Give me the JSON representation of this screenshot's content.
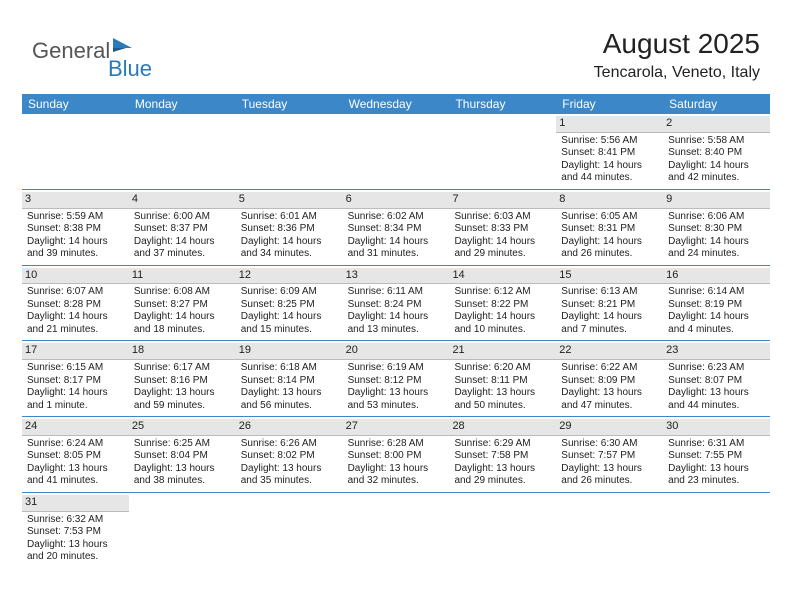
{
  "logo": {
    "text1": "General",
    "text2": "Blue"
  },
  "title": "August 2025",
  "subtitle": "Tencarola, Veneto, Italy",
  "colors": {
    "header_bg": "#3b87c8",
    "header_fg": "#ffffff",
    "daynum_bg": "#e6e6e6",
    "row_border": "#3b87c8",
    "logo_blue": "#2a7ab9"
  },
  "day_names": [
    "Sunday",
    "Monday",
    "Tuesday",
    "Wednesday",
    "Thursday",
    "Friday",
    "Saturday"
  ],
  "weeks": [
    [
      null,
      null,
      null,
      null,
      null,
      {
        "n": "1",
        "sr": "Sunrise: 5:56 AM",
        "ss": "Sunset: 8:41 PM",
        "dl": "Daylight: 14 hours and 44 minutes."
      },
      {
        "n": "2",
        "sr": "Sunrise: 5:58 AM",
        "ss": "Sunset: 8:40 PM",
        "dl": "Daylight: 14 hours and 42 minutes."
      }
    ],
    [
      {
        "n": "3",
        "sr": "Sunrise: 5:59 AM",
        "ss": "Sunset: 8:38 PM",
        "dl": "Daylight: 14 hours and 39 minutes."
      },
      {
        "n": "4",
        "sr": "Sunrise: 6:00 AM",
        "ss": "Sunset: 8:37 PM",
        "dl": "Daylight: 14 hours and 37 minutes."
      },
      {
        "n": "5",
        "sr": "Sunrise: 6:01 AM",
        "ss": "Sunset: 8:36 PM",
        "dl": "Daylight: 14 hours and 34 minutes."
      },
      {
        "n": "6",
        "sr": "Sunrise: 6:02 AM",
        "ss": "Sunset: 8:34 PM",
        "dl": "Daylight: 14 hours and 31 minutes."
      },
      {
        "n": "7",
        "sr": "Sunrise: 6:03 AM",
        "ss": "Sunset: 8:33 PM",
        "dl": "Daylight: 14 hours and 29 minutes."
      },
      {
        "n": "8",
        "sr": "Sunrise: 6:05 AM",
        "ss": "Sunset: 8:31 PM",
        "dl": "Daylight: 14 hours and 26 minutes."
      },
      {
        "n": "9",
        "sr": "Sunrise: 6:06 AM",
        "ss": "Sunset: 8:30 PM",
        "dl": "Daylight: 14 hours and 24 minutes."
      }
    ],
    [
      {
        "n": "10",
        "sr": "Sunrise: 6:07 AM",
        "ss": "Sunset: 8:28 PM",
        "dl": "Daylight: 14 hours and 21 minutes."
      },
      {
        "n": "11",
        "sr": "Sunrise: 6:08 AM",
        "ss": "Sunset: 8:27 PM",
        "dl": "Daylight: 14 hours and 18 minutes."
      },
      {
        "n": "12",
        "sr": "Sunrise: 6:09 AM",
        "ss": "Sunset: 8:25 PM",
        "dl": "Daylight: 14 hours and 15 minutes."
      },
      {
        "n": "13",
        "sr": "Sunrise: 6:11 AM",
        "ss": "Sunset: 8:24 PM",
        "dl": "Daylight: 14 hours and 13 minutes."
      },
      {
        "n": "14",
        "sr": "Sunrise: 6:12 AM",
        "ss": "Sunset: 8:22 PM",
        "dl": "Daylight: 14 hours and 10 minutes."
      },
      {
        "n": "15",
        "sr": "Sunrise: 6:13 AM",
        "ss": "Sunset: 8:21 PM",
        "dl": "Daylight: 14 hours and 7 minutes."
      },
      {
        "n": "16",
        "sr": "Sunrise: 6:14 AM",
        "ss": "Sunset: 8:19 PM",
        "dl": "Daylight: 14 hours and 4 minutes."
      }
    ],
    [
      {
        "n": "17",
        "sr": "Sunrise: 6:15 AM",
        "ss": "Sunset: 8:17 PM",
        "dl": "Daylight: 14 hours and 1 minute."
      },
      {
        "n": "18",
        "sr": "Sunrise: 6:17 AM",
        "ss": "Sunset: 8:16 PM",
        "dl": "Daylight: 13 hours and 59 minutes."
      },
      {
        "n": "19",
        "sr": "Sunrise: 6:18 AM",
        "ss": "Sunset: 8:14 PM",
        "dl": "Daylight: 13 hours and 56 minutes."
      },
      {
        "n": "20",
        "sr": "Sunrise: 6:19 AM",
        "ss": "Sunset: 8:12 PM",
        "dl": "Daylight: 13 hours and 53 minutes."
      },
      {
        "n": "21",
        "sr": "Sunrise: 6:20 AM",
        "ss": "Sunset: 8:11 PM",
        "dl": "Daylight: 13 hours and 50 minutes."
      },
      {
        "n": "22",
        "sr": "Sunrise: 6:22 AM",
        "ss": "Sunset: 8:09 PM",
        "dl": "Daylight: 13 hours and 47 minutes."
      },
      {
        "n": "23",
        "sr": "Sunrise: 6:23 AM",
        "ss": "Sunset: 8:07 PM",
        "dl": "Daylight: 13 hours and 44 minutes."
      }
    ],
    [
      {
        "n": "24",
        "sr": "Sunrise: 6:24 AM",
        "ss": "Sunset: 8:05 PM",
        "dl": "Daylight: 13 hours and 41 minutes."
      },
      {
        "n": "25",
        "sr": "Sunrise: 6:25 AM",
        "ss": "Sunset: 8:04 PM",
        "dl": "Daylight: 13 hours and 38 minutes."
      },
      {
        "n": "26",
        "sr": "Sunrise: 6:26 AM",
        "ss": "Sunset: 8:02 PM",
        "dl": "Daylight: 13 hours and 35 minutes."
      },
      {
        "n": "27",
        "sr": "Sunrise: 6:28 AM",
        "ss": "Sunset: 8:00 PM",
        "dl": "Daylight: 13 hours and 32 minutes."
      },
      {
        "n": "28",
        "sr": "Sunrise: 6:29 AM",
        "ss": "Sunset: 7:58 PM",
        "dl": "Daylight: 13 hours and 29 minutes."
      },
      {
        "n": "29",
        "sr": "Sunrise: 6:30 AM",
        "ss": "Sunset: 7:57 PM",
        "dl": "Daylight: 13 hours and 26 minutes."
      },
      {
        "n": "30",
        "sr": "Sunrise: 6:31 AM",
        "ss": "Sunset: 7:55 PM",
        "dl": "Daylight: 13 hours and 23 minutes."
      }
    ],
    [
      {
        "n": "31",
        "sr": "Sunrise: 6:32 AM",
        "ss": "Sunset: 7:53 PM",
        "dl": "Daylight: 13 hours and 20 minutes."
      },
      null,
      null,
      null,
      null,
      null,
      null
    ]
  ]
}
